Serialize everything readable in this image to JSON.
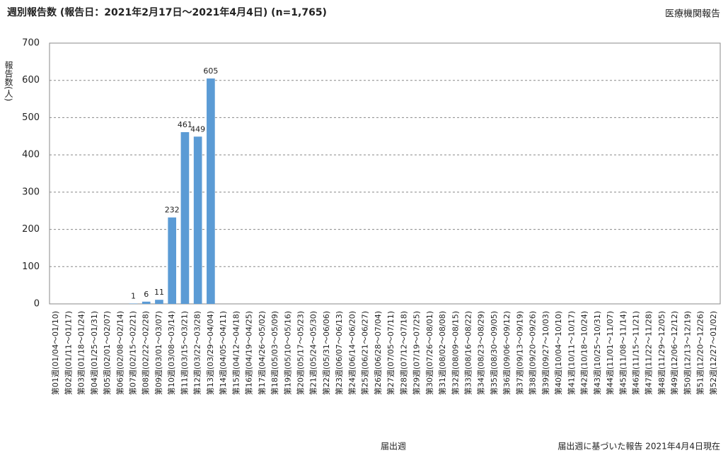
{
  "chart_data": {
    "type": "bar",
    "title": "週別報告数 (報告日：2021年2月17日～2021年4月4日) (n=1,765)",
    "source": "医療機関報告",
    "y_label": "報告数(人)",
    "x_label": "届出週",
    "footnote": "届出週に基づいた報告 2021年4月4日現在",
    "categories": [
      "第01週(01/04～01/10)",
      "第02週(01/11～01/17)",
      "第03週(01/18～01/24)",
      "第04週(01/25～01/31)",
      "第05週(02/01～02/07)",
      "第06週(02/08～02/14)",
      "第07週(02/15～02/21)",
      "第08週(02/22～02/28)",
      "第09週(03/01～03/07)",
      "第10週(03/08～03/14)",
      "第11週(03/15～03/21)",
      "第12週(03/22～03/28)",
      "第13週(03/29～04/04)",
      "第14週(04/05～04/11)",
      "第15週(04/12～04/18)",
      "第16週(04/19～04/25)",
      "第17週(04/26～05/02)",
      "第18週(05/03～05/09)",
      "第19週(05/10～05/16)",
      "第20週(05/17～05/23)",
      "第21週(05/24～05/30)",
      "第22週(05/31～06/06)",
      "第23週(06/07～06/13)",
      "第24週(06/14～06/20)",
      "第25週(06/21～06/27)",
      "第26週(06/28～07/04)",
      "第27週(07/05～07/11)",
      "第28週(07/12～07/18)",
      "第29週(07/19～07/25)",
      "第30週(07/26～08/01)",
      "第31週(08/02～08/08)",
      "第32週(08/09～08/15)",
      "第33週(08/16～08/22)",
      "第34週(08/23～08/29)",
      "第35週(08/30～09/05)",
      "第36週(09/06～09/12)",
      "第37週(09/13～09/19)",
      "第38週(09/20～09/26)",
      "第39週(09/27～10/03)",
      "第40週(10/04～10/10)",
      "第41週(10/11～10/17)",
      "第42週(10/18～10/24)",
      "第43週(10/25～10/31)",
      "第44週(11/01～11/07)",
      "第45週(11/08～11/14)",
      "第46週(11/15～11/21)",
      "第47週(11/22～11/28)",
      "第48週(11/29～12/05)",
      "第49週(12/06～12/12)",
      "第50週(12/13～12/19)",
      "第51週(12/20～12/26)",
      "第52週(12/27～01/02)"
    ],
    "values": [
      null,
      null,
      null,
      null,
      null,
      null,
      1,
      6,
      11,
      232,
      461,
      449,
      605,
      null,
      null,
      null,
      null,
      null,
      null,
      null,
      null,
      null,
      null,
      null,
      null,
      null,
      null,
      null,
      null,
      null,
      null,
      null,
      null,
      null,
      null,
      null,
      null,
      null,
      null,
      null,
      null,
      null,
      null,
      null,
      null,
      null,
      null,
      null,
      null,
      null,
      null,
      null
    ],
    "color": "#5b9bd5",
    "ylim": [
      0,
      700
    ],
    "yticks": [
      0,
      100,
      200,
      300,
      400,
      500,
      600,
      700
    ],
    "grid": true
  }
}
